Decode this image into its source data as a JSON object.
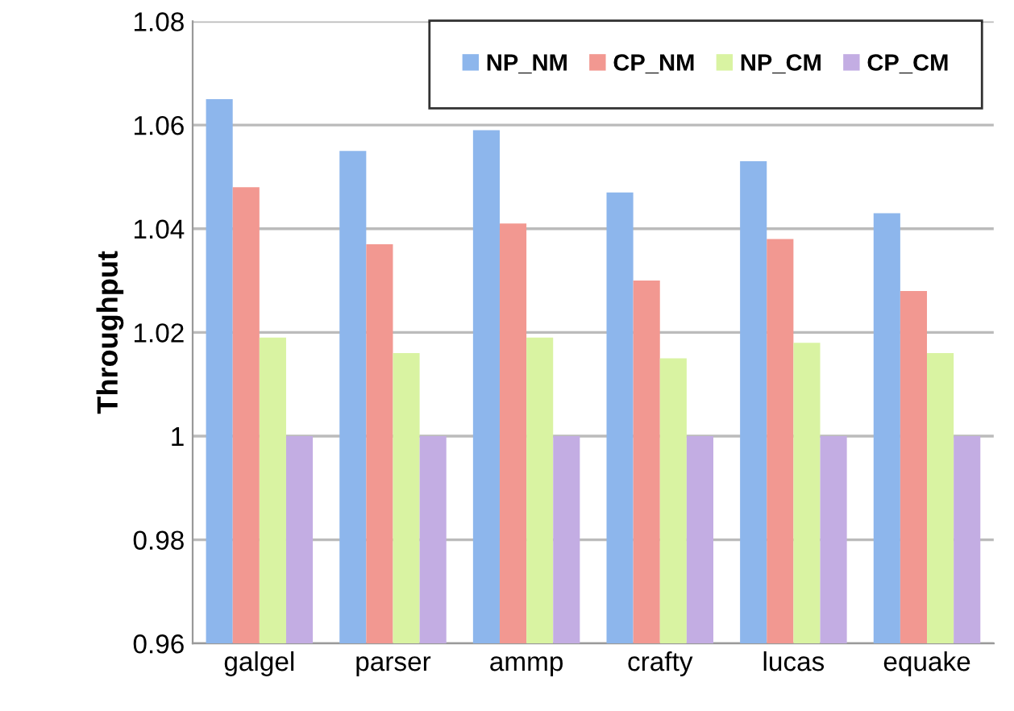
{
  "chart_data": {
    "type": "bar",
    "ylabel": "Throughput",
    "categories": [
      "galgel",
      "parser",
      "ammp",
      "crafty",
      "lucas",
      "equake"
    ],
    "series": [
      {
        "name": "NP_NM",
        "color": "#8db6ec",
        "values": [
          1.065,
          1.055,
          1.059,
          1.047,
          1.053,
          1.043
        ]
      },
      {
        "name": "CP_NM",
        "color": "#f29891",
        "values": [
          1.048,
          1.037,
          1.041,
          1.03,
          1.038,
          1.028
        ]
      },
      {
        "name": "NP_CM",
        "color": "#d9f3a2",
        "values": [
          1.019,
          1.016,
          1.019,
          1.015,
          1.018,
          1.016
        ]
      },
      {
        "name": "CP_CM",
        "color": "#c3ade3",
        "values": [
          1,
          1,
          1,
          1,
          1,
          1
        ]
      }
    ],
    "ylim": [
      0.96,
      1.08
    ],
    "yticks": [
      0.96,
      0.98,
      1,
      1.02,
      1.04,
      1.06,
      1.08
    ],
    "grid": "y",
    "legend": "top right"
  }
}
